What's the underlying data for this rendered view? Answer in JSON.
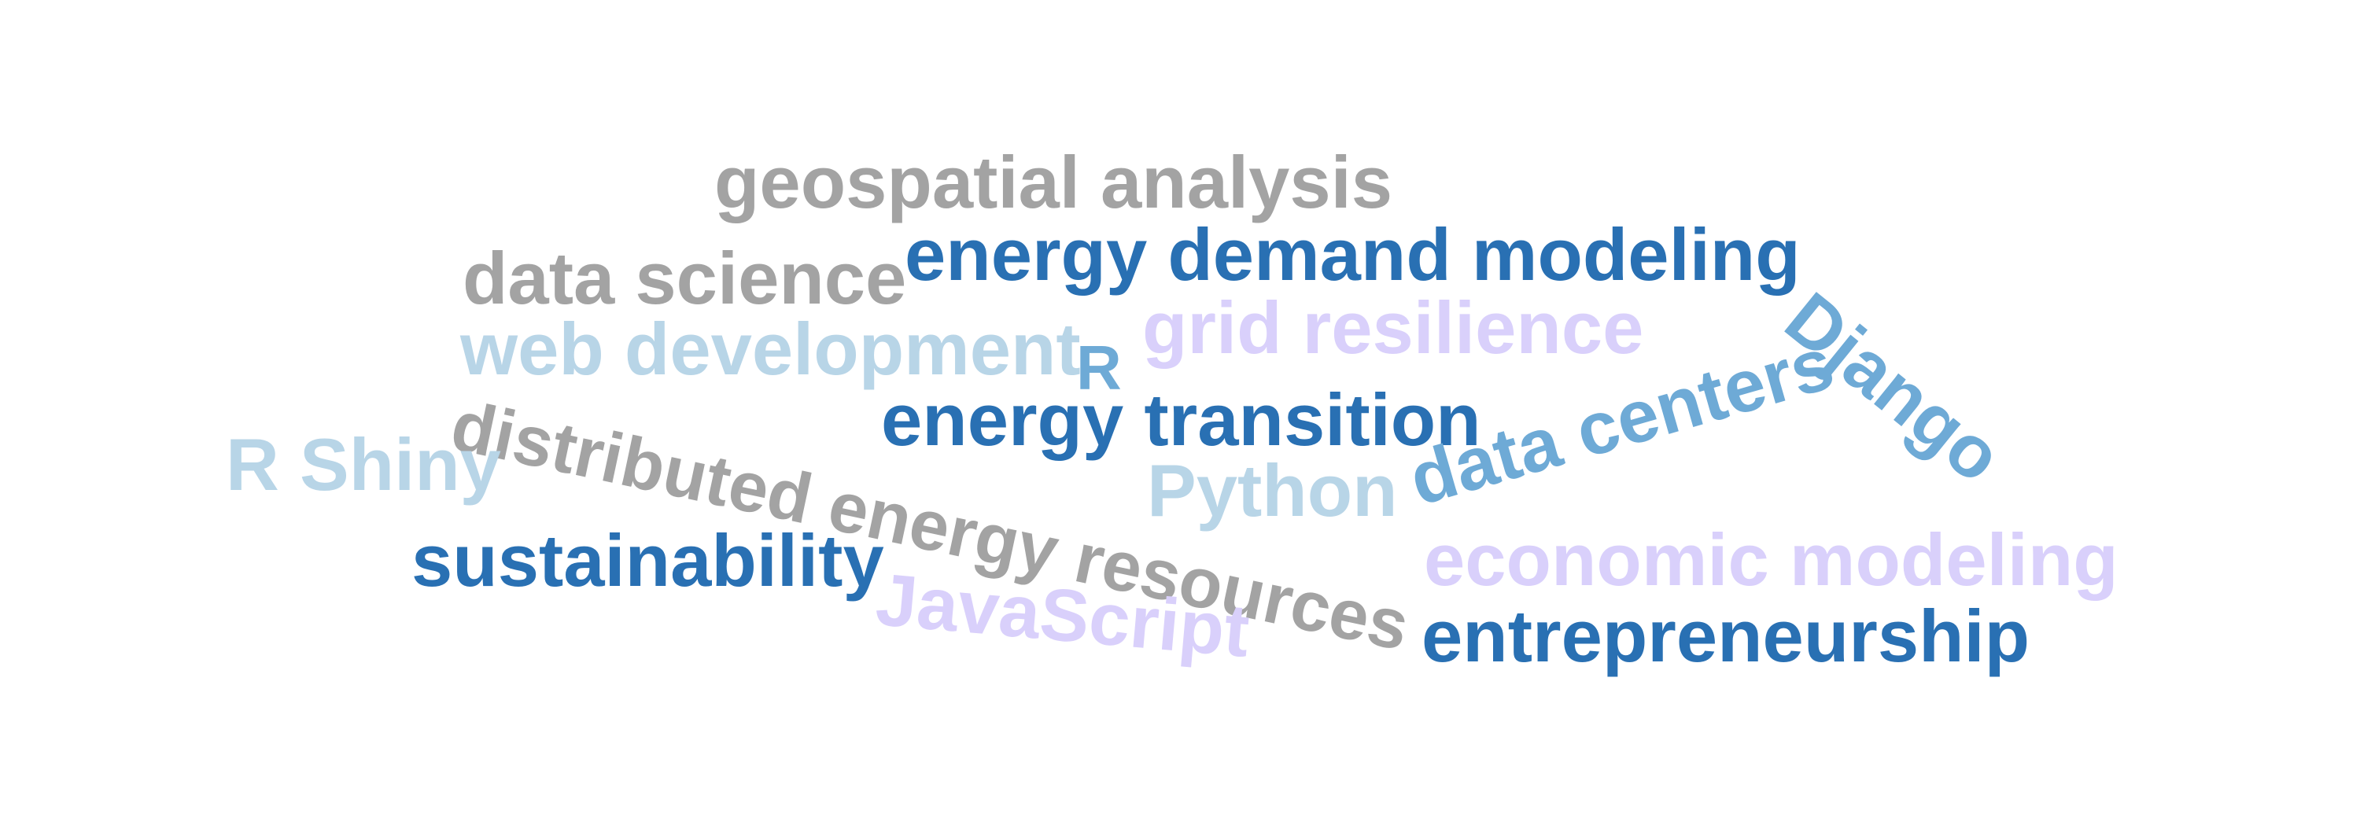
{
  "colors": {
    "grey": "#a3a3a3",
    "dark_blue": "#2970b3",
    "light_blue": "#b8d5e7",
    "mid_blue": "#6eaad6",
    "lavender": "#d9d0fb"
  },
  "words": [
    {
      "key": "geospatial_analysis",
      "text": "geospatial analysis",
      "color": "grey"
    },
    {
      "key": "data_science",
      "text": "data science",
      "color": "grey"
    },
    {
      "key": "energy_demand_modeling",
      "text": "energy demand modeling",
      "color": "dark_blue"
    },
    {
      "key": "web_development",
      "text": "web development",
      "color": "light_blue"
    },
    {
      "key": "grid_resilience",
      "text": "grid resilience",
      "color": "lavender"
    },
    {
      "key": "r",
      "text": "R",
      "color": "mid_blue"
    },
    {
      "key": "django",
      "text": "Django",
      "color": "mid_blue"
    },
    {
      "key": "energy_transition",
      "text": "energy transition",
      "color": "dark_blue"
    },
    {
      "key": "distributed_energy_resources",
      "text": "distributed energy resources",
      "color": "grey"
    },
    {
      "key": "r_shiny",
      "text": "R Shiny",
      "color": "light_blue"
    },
    {
      "key": "data_centers",
      "text": "data centers",
      "color": "mid_blue"
    },
    {
      "key": "python",
      "text": "Python",
      "color": "light_blue"
    },
    {
      "key": "sustainability",
      "text": "sustainability",
      "color": "dark_blue"
    },
    {
      "key": "economic_modeling",
      "text": "economic modeling",
      "color": "lavender"
    },
    {
      "key": "javascript",
      "text": "JavaScript",
      "color": "lavender"
    },
    {
      "key": "entrepreneurship",
      "text": "entrepreneurship",
      "color": "dark_blue"
    }
  ]
}
